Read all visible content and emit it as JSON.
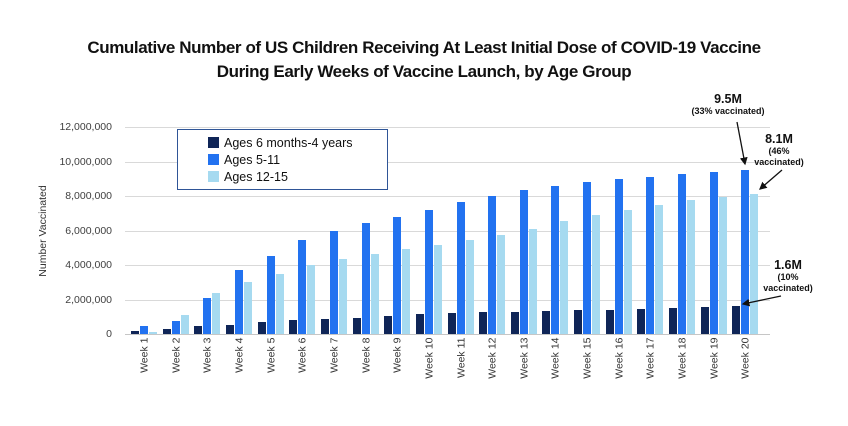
{
  "title": {
    "line1": "Cumulative Number of US Children Receiving At Least Initial Dose of COVID-19 Vaccine",
    "line2": "During Early Weeks of Vaccine Launch, by Age Group"
  },
  "y_axis": {
    "label": "Number Vaccinated",
    "tick_labels": [
      "0",
      "2,000,000",
      "4,000,000",
      "6,000,000",
      "8,000,000",
      "10,000,000",
      "12,000,000"
    ]
  },
  "chart_data": {
    "type": "bar",
    "title": "Cumulative Number of US Children Receiving At Least Initial Dose of COVID-19 Vaccine During Early Weeks of Vaccine Launch, by Age Group",
    "ylabel": "Number Vaccinated",
    "ylim": [
      0,
      12000000
    ],
    "ytick_step": 2000000,
    "grid": true,
    "legend_position": "upper-left-inside",
    "categories": [
      "Week 1",
      "Week 2",
      "Week 3",
      "Week 4",
      "Week 5",
      "Week 6",
      "Week 7",
      "Week 8",
      "Week 9",
      "Week 10",
      "Week 11",
      "Week 12",
      "Week 13",
      "Week 14",
      "Week 15",
      "Week 16",
      "Week 17",
      "Week 18",
      "Week 19",
      "Week 20"
    ],
    "series": [
      {
        "name": "Ages 6 months-4 years",
        "color": "#0f2557",
        "values": [
          200000,
          300000,
          450000,
          550000,
          700000,
          800000,
          850000,
          950000,
          1050000,
          1150000,
          1200000,
          1250000,
          1300000,
          1350000,
          1380000,
          1410000,
          1450000,
          1500000,
          1550000,
          1600000
        ]
      },
      {
        "name": "Ages 5-11",
        "color": "#2272f0",
        "values": [
          450000,
          750000,
          2100000,
          3700000,
          4500000,
          5450000,
          6000000,
          6450000,
          6800000,
          7200000,
          7650000,
          8000000,
          8350000,
          8600000,
          8800000,
          9000000,
          9100000,
          9250000,
          9400000,
          9500000
        ]
      },
      {
        "name": "Ages 12-15",
        "color": "#a6daf0",
        "values": [
          100000,
          1100000,
          2400000,
          3000000,
          3500000,
          4000000,
          4350000,
          4650000,
          4900000,
          5150000,
          5450000,
          5750000,
          6100000,
          6550000,
          6900000,
          7200000,
          7500000,
          7750000,
          7950000,
          8100000
        ]
      }
    ]
  },
  "annotations": [
    {
      "value": "9.5M",
      "detail1": "(33% vaccinated)",
      "target_series": "Ages 5-11",
      "target_week": "Week 20"
    },
    {
      "value": "8.1M",
      "detail1": "(46%",
      "detail2": "vaccinated)",
      "target_series": "Ages 12-15",
      "target_week": "Week 20"
    },
    {
      "value": "1.6M",
      "detail1": "(10%",
      "detail2": "vaccinated)",
      "target_series": "Ages 6 months-4 years",
      "target_week": "Week 20"
    }
  ]
}
